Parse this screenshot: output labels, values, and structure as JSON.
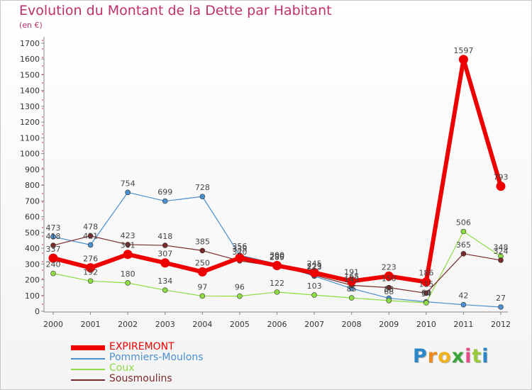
{
  "title": "Evolution du Montant de la Dette par Habitant",
  "subtitle": "(en €)",
  "chart_data": {
    "type": "line",
    "title": "Evolution du Montant de la Dette par Habitant",
    "subtitle": "(en €)",
    "xlabel": "",
    "ylabel": "",
    "x": [
      "2000",
      "2001",
      "2002",
      "2003",
      "2004",
      "2005",
      "2006",
      "2007",
      "2008",
      "2009",
      "2010",
      "2011",
      "2012"
    ],
    "ylim": [
      0,
      1700
    ],
    "yticks": [
      0,
      100,
      200,
      300,
      400,
      500,
      600,
      700,
      800,
      900,
      1000,
      1100,
      1200,
      1300,
      1400,
      1500,
      1600,
      1700
    ],
    "grid": "off",
    "legend": "bottom-left",
    "series": [
      {
        "name": "Pommiers-Moulons",
        "color": "#4a8fcf",
        "width": 1.2,
        "marker": 3.5,
        "values": [
          473,
          421,
          754,
          699,
          728,
          356,
          300,
          223,
          145,
          83,
          60,
          42,
          27
        ]
      },
      {
        "name": "Coux",
        "color": "#8edb44",
        "width": 1.2,
        "marker": 3.5,
        "values": [
          240,
          192,
          180,
          134,
          97,
          96,
          122,
          103,
          85,
          68,
          54,
          506,
          348
        ]
      },
      {
        "name": "Sousmoulins",
        "color": "#7a2a2a",
        "width": 1.2,
        "marker": 3.5,
        "values": [
          418,
          478,
          423,
          418,
          385,
          320,
          285,
          229,
          165,
          150,
          115,
          365,
          324
        ]
      },
      {
        "name": "EXPIREMONT",
        "color": "#ee0000",
        "width": 6,
        "marker": 6.5,
        "values": [
          337,
          276,
          361,
          307,
          250,
          339,
          290,
          245,
          191,
          223,
          186,
          1597,
          793
        ]
      }
    ],
    "labels": [
      {
        "text": "473",
        "x": 0,
        "y": 473
      },
      {
        "text": "418",
        "x": 0,
        "y": 418
      },
      {
        "text": "337",
        "x": 0,
        "y": 337
      },
      {
        "text": "240",
        "x": 0,
        "y": 240
      },
      {
        "text": "478",
        "x": 1,
        "y": 478
      },
      {
        "text": "421",
        "x": 1,
        "y": 421
      },
      {
        "text": "276",
        "x": 1,
        "y": 276
      },
      {
        "text": "192",
        "x": 1,
        "y": 192
      },
      {
        "text": "754",
        "x": 2,
        "y": 754
      },
      {
        "text": "423",
        "x": 2,
        "y": 423
      },
      {
        "text": "361",
        "x": 2,
        "y": 361
      },
      {
        "text": "180",
        "x": 2,
        "y": 180
      },
      {
        "text": "699",
        "x": 3,
        "y": 699
      },
      {
        "text": "418",
        "x": 3,
        "y": 418
      },
      {
        "text": "307",
        "x": 3,
        "y": 307
      },
      {
        "text": "134",
        "x": 3,
        "y": 134
      },
      {
        "text": "728",
        "x": 4,
        "y": 728
      },
      {
        "text": "385",
        "x": 4,
        "y": 385
      },
      {
        "text": "250",
        "x": 4,
        "y": 250
      },
      {
        "text": "97",
        "x": 4,
        "y": 97
      },
      {
        "text": "356",
        "x": 5,
        "y": 356
      },
      {
        "text": "339",
        "x": 5,
        "y": 339
      },
      {
        "text": "320",
        "x": 5,
        "y": 320
      },
      {
        "text": "96",
        "x": 5,
        "y": 96
      },
      {
        "text": "300",
        "x": 6,
        "y": 300
      },
      {
        "text": "290",
        "x": 6,
        "y": 290
      },
      {
        "text": "285",
        "x": 6,
        "y": 285
      },
      {
        "text": "122",
        "x": 6,
        "y": 122
      },
      {
        "text": "245",
        "x": 7,
        "y": 245
      },
      {
        "text": "229",
        "x": 7,
        "y": 229
      },
      {
        "text": "223",
        "x": 7,
        "y": 223
      },
      {
        "text": "103",
        "x": 7,
        "y": 103
      },
      {
        "text": "191",
        "x": 8,
        "y": 191
      },
      {
        "text": "165",
        "x": 8,
        "y": 165
      },
      {
        "text": "145",
        "x": 8,
        "y": 145
      },
      {
        "text": "85",
        "x": 8,
        "y": 85
      },
      {
        "text": "223",
        "x": 9,
        "y": 223
      },
      {
        "text": "150",
        "x": 9,
        "y": 150
      },
      {
        "text": "83",
        "x": 9,
        "y": 83
      },
      {
        "text": "68",
        "x": 9,
        "y": 68
      },
      {
        "text": "186",
        "x": 10,
        "y": 186
      },
      {
        "text": "115",
        "x": 10,
        "y": 115
      },
      {
        "text": "60",
        "x": 10,
        "y": 60
      },
      {
        "text": "54",
        "x": 10,
        "y": 54
      },
      {
        "text": "1597",
        "x": 11,
        "y": 1597
      },
      {
        "text": "506",
        "x": 11,
        "y": 506
      },
      {
        "text": "365",
        "x": 11,
        "y": 365
      },
      {
        "text": "42",
        "x": 11,
        "y": 42
      },
      {
        "text": "793",
        "x": 12,
        "y": 793
      },
      {
        "text": "348",
        "x": 12,
        "y": 348
      },
      {
        "text": "324",
        "x": 12,
        "y": 324
      },
      {
        "text": "27",
        "x": 12,
        "y": 27
      }
    ]
  },
  "legend": {
    "items": [
      {
        "label": "EXPIREMONT",
        "color": "#ee0000"
      },
      {
        "label": "Pommiers-Moulons",
        "color": "#4a8fcf"
      },
      {
        "label": "Coux",
        "color": "#8edb44"
      },
      {
        "label": "Sousmoulins",
        "color": "#7a2a2a"
      }
    ]
  },
  "logo": {
    "letters": [
      "P",
      "r",
      "o",
      "x",
      "i",
      "t",
      "i"
    ],
    "colors": [
      "#2a86c6",
      "#f08a1c",
      "#f3b21c",
      "#3aa339",
      "#e84a86",
      "#9ac93a",
      "#2a86c6"
    ]
  }
}
